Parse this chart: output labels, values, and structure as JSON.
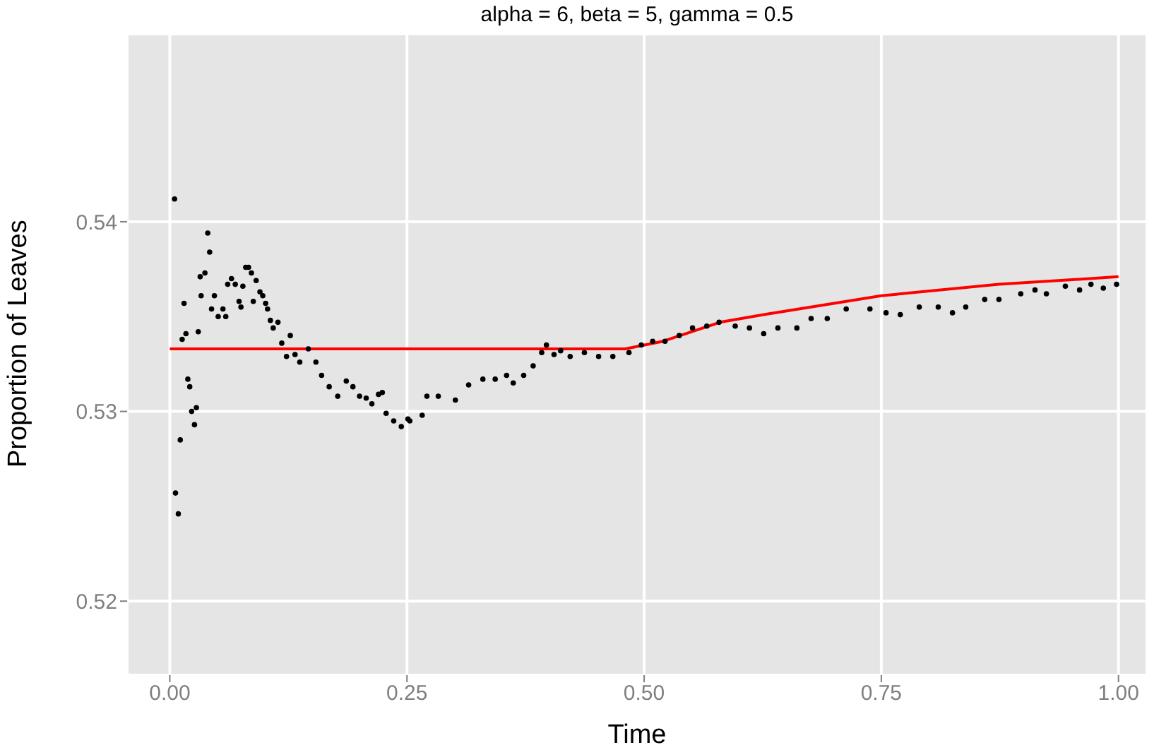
{
  "chart_data": {
    "type": "scatter",
    "title": "alpha = 6, beta = 5, gamma = 0.5",
    "xlabel": "Time",
    "ylabel": "Proportion of Leaves",
    "xlim": [
      -0.045,
      1.03
    ],
    "xticks": [
      {
        "value": 0,
        "label": "0.00"
      },
      {
        "value": 0.25,
        "label": "0.25"
      },
      {
        "value": 0.5,
        "label": "0.50"
      },
      {
        "value": 0.75,
        "label": "0.75"
      },
      {
        "value": 1,
        "label": "1.00"
      }
    ],
    "ylim": [
      0.5161,
      0.5499
    ],
    "yticks": [
      0.52,
      0.53,
      0.54
    ],
    "grid": true,
    "legend": false,
    "series": [
      {
        "type": "scatter",
        "color": "#000000",
        "x": [
          0.005,
          0.006,
          0.009,
          0.011,
          0.013,
          0.015,
          0.017,
          0.019,
          0.021,
          0.023,
          0.026,
          0.028,
          0.03,
          0.032,
          0.033,
          0.037,
          0.04,
          0.042,
          0.044,
          0.047,
          0.051,
          0.056,
          0.059,
          0.061,
          0.065,
          0.069,
          0.073,
          0.075,
          0.077,
          0.08,
          0.083,
          0.086,
          0.088,
          0.091,
          0.095,
          0.098,
          0.101,
          0.103,
          0.106,
          0.109,
          0.114,
          0.118,
          0.123,
          0.127,
          0.132,
          0.137,
          0.146,
          0.154,
          0.16,
          0.168,
          0.177,
          0.186,
          0.193,
          0.2,
          0.207,
          0.213,
          0.22,
          0.224,
          0.228,
          0.236,
          0.244,
          0.251,
          0.253,
          0.266,
          0.271,
          0.283,
          0.301,
          0.315,
          0.33,
          0.343,
          0.355,
          0.362,
          0.373,
          0.383,
          0.392,
          0.397,
          0.405,
          0.412,
          0.422,
          0.437,
          0.452,
          0.467,
          0.484,
          0.497,
          0.509,
          0.522,
          0.537,
          0.551,
          0.566,
          0.579,
          0.596,
          0.611,
          0.626,
          0.641,
          0.661,
          0.676,
          0.693,
          0.713,
          0.738,
          0.755,
          0.77,
          0.79,
          0.81,
          0.825,
          0.839,
          0.859,
          0.874,
          0.897,
          0.912,
          0.924,
          0.944,
          0.959,
          0.971,
          0.984,
          0.998
        ],
        "values": [
          0.5412,
          0.5257,
          0.5246,
          0.5285,
          0.5338,
          0.5357,
          0.5341,
          0.5317,
          0.5313,
          0.53,
          0.5293,
          0.5302,
          0.5342,
          0.5371,
          0.5361,
          0.5373,
          0.5394,
          0.5384,
          0.5354,
          0.5361,
          0.535,
          0.5354,
          0.535,
          0.5367,
          0.537,
          0.5367,
          0.5358,
          0.5355,
          0.5366,
          0.5376,
          0.5376,
          0.5373,
          0.5358,
          0.5369,
          0.5363,
          0.5361,
          0.5357,
          0.5354,
          0.5348,
          0.5344,
          0.5347,
          0.5336,
          0.5329,
          0.534,
          0.533,
          0.5326,
          0.5333,
          0.5326,
          0.5319,
          0.5313,
          0.5308,
          0.5316,
          0.5313,
          0.5308,
          0.5307,
          0.5304,
          0.5309,
          0.531,
          0.5299,
          0.5295,
          0.5292,
          0.5296,
          0.5295,
          0.5298,
          0.5308,
          0.5308,
          0.5306,
          0.5314,
          0.5317,
          0.5317,
          0.5319,
          0.5315,
          0.5319,
          0.5324,
          0.5331,
          0.5335,
          0.533,
          0.5332,
          0.5329,
          0.5331,
          0.5329,
          0.5329,
          0.5331,
          0.5335,
          0.5337,
          0.5337,
          0.534,
          0.5344,
          0.5345,
          0.5347,
          0.5345,
          0.5344,
          0.5341,
          0.5344,
          0.5344,
          0.5349,
          0.5349,
          0.5354,
          0.5354,
          0.5352,
          0.5351,
          0.5355,
          0.5355,
          0.5352,
          0.5355,
          0.5359,
          0.5359,
          0.5362,
          0.5364,
          0.5362,
          0.5366,
          0.5364,
          0.5367,
          0.5365,
          0.5367
        ]
      },
      {
        "type": "line",
        "color": "#ff0000",
        "x": [
          0,
          0.48,
          0.52,
          0.58,
          0.626,
          0.75,
          0.874,
          1.0
        ],
        "values": [
          0.5333,
          0.5333,
          0.5337,
          0.5347,
          0.5351,
          0.5361,
          0.5367,
          0.5371
        ]
      }
    ]
  }
}
